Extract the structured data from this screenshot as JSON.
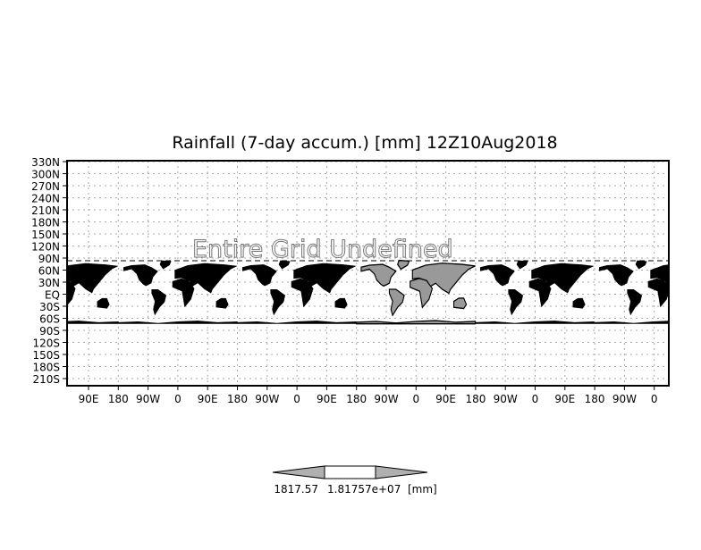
{
  "chart_data": {
    "type": "heatmap",
    "title": "Rainfall (7-day accum.) [mm] 12Z10Aug2018",
    "annotation": "Entire Grid Undefined",
    "ytick_labels": [
      "330N",
      "300N",
      "270N",
      "240N",
      "210N",
      "180N",
      "150N",
      "120N",
      "90N",
      "60N",
      "30N",
      "EQ",
      "30S",
      "60S",
      "90S",
      "120S",
      "150S",
      "180S",
      "210S"
    ],
    "xtick_labels": [
      "90E",
      "180",
      "90W",
      "0",
      "90E",
      "180",
      "90W",
      "0",
      "90E",
      "180",
      "90W",
      "0",
      "90E",
      "180",
      "90W",
      "0",
      "90E",
      "180",
      "90W",
      "0"
    ],
    "grid": true,
    "colorbar": {
      "labels": [
        "1817.57",
        "1.81757e+07"
      ],
      "unit": "[mm]",
      "colors": [
        "#b0b0b0",
        "#ffffff",
        "#b0b0b0"
      ]
    }
  }
}
